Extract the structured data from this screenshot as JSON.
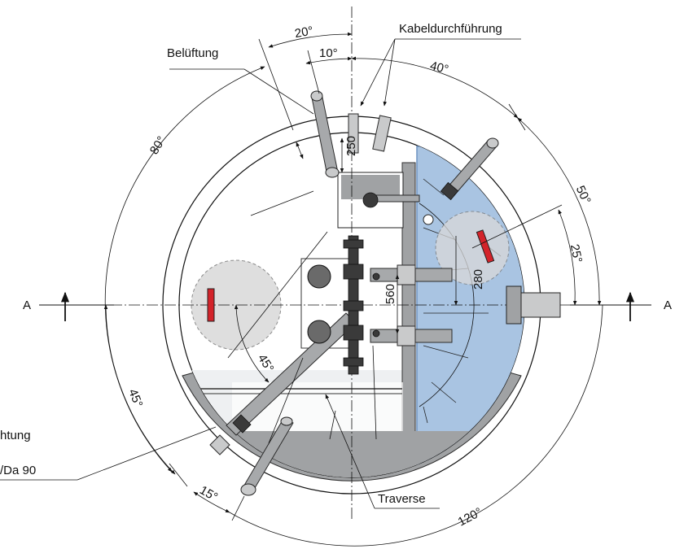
{
  "labels": {
    "belueftung": "Belüftung",
    "kabeldurchfuehrung": "Kabeldurchführung",
    "traverse": "Traverse",
    "section_a_left": "A",
    "section_a_right": "A",
    "partial_left_1": "htung",
    "partial_left_2": "/Da 90"
  },
  "dimensions": {
    "angle_20": "20°",
    "angle_10": "10°",
    "angle_40": "40°",
    "angle_80": "80°",
    "angle_50": "50°",
    "angle_25": "25°",
    "angle_45_inner": "45°",
    "angle_45_outer": "45°",
    "angle_15": "15°",
    "angle_120": "120°",
    "len_250": "250",
    "len_280": "280",
    "len_560": "560"
  },
  "colors": {
    "wet_well_fill": "#a9c4e2",
    "wet_well_edge": "#6f93c2",
    "wall_grey": "#a0a2a4",
    "floor_light": "#eef0f2",
    "accent_red": "#d3232a",
    "circle_fill": "#d9d9d9"
  }
}
